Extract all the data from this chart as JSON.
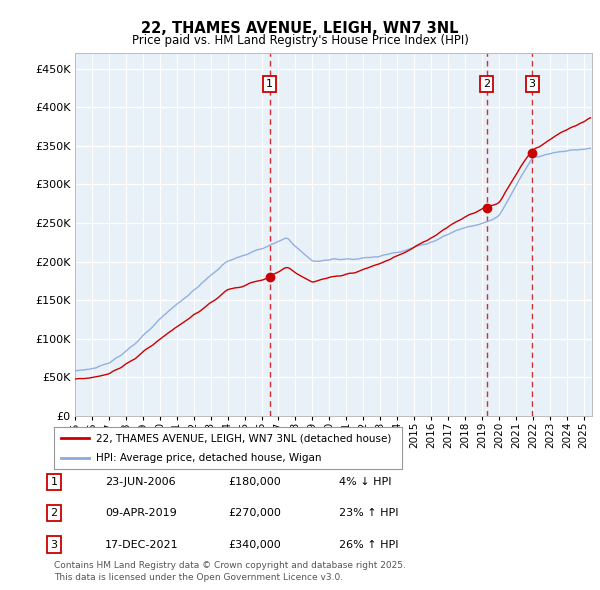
{
  "title": "22, THAMES AVENUE, LEIGH, WN7 3NL",
  "subtitle": "Price paid vs. HM Land Registry's House Price Index (HPI)",
  "ytick_values": [
    0,
    50000,
    100000,
    150000,
    200000,
    250000,
    300000,
    350000,
    400000,
    450000
  ],
  "ylim": [
    0,
    470000
  ],
  "xlim_start": 1995.0,
  "xlim_end": 2025.5,
  "price_paid_color": "#cc0000",
  "hpi_color": "#88aadd",
  "purchase_dates": [
    2006.478,
    2019.274,
    2021.958
  ],
  "purchase_prices": [
    180000,
    270000,
    340000
  ],
  "purchase_labels": [
    "1",
    "2",
    "3"
  ],
  "legend_entries": [
    "22, THAMES AVENUE, LEIGH, WN7 3NL (detached house)",
    "HPI: Average price, detached house, Wigan"
  ],
  "table_data": [
    [
      "1",
      "23-JUN-2006",
      "£180,000",
      "4% ↓ HPI"
    ],
    [
      "2",
      "09-APR-2019",
      "£270,000",
      "23% ↑ HPI"
    ],
    [
      "3",
      "17-DEC-2021",
      "£340,000",
      "26% ↑ HPI"
    ]
  ],
  "footnote": "Contains HM Land Registry data © Crown copyright and database right 2025.\nThis data is licensed under the Open Government Licence v3.0.",
  "plot_bg_color": "#e8f0f8",
  "grid_color": "#ffffff"
}
